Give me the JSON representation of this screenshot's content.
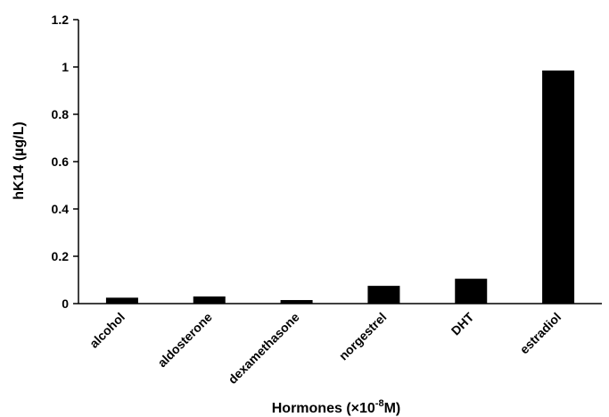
{
  "chart_data": {
    "type": "bar",
    "categories": [
      "alcohol",
      "aldosterone",
      "dexamethasone",
      "norgestrel",
      "DHT",
      "estradiol"
    ],
    "values": [
      0.025,
      0.03,
      0.015,
      0.075,
      0.105,
      0.985
    ],
    "ylabel": "hK14 (µg/L)",
    "xlabel_prefix": "Hormones (",
    "xlabel_mult": "×10",
    "xlabel_exp": "-8",
    "xlabel_suffix": "M)",
    "ylim": [
      0,
      1.2
    ],
    "yticks": [
      "0",
      "0.2",
      "0.4",
      "0.6",
      "0.8",
      "1",
      "1.2"
    ],
    "bar_color": "#000000",
    "grid": false,
    "legend": "none"
  }
}
